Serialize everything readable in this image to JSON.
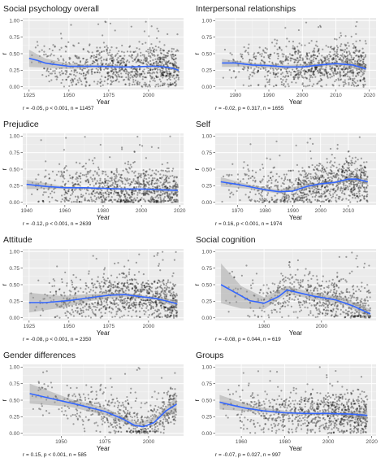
{
  "chart_data": [
    {
      "type": "scatter",
      "title": "Social psychology overall",
      "xlabel": "Year",
      "ylabel": "r",
      "xlim": [
        1921,
        2022
      ],
      "ylim": [
        -0.04,
        1.04
      ],
      "x_ticks": [
        1925,
        1950,
        1975,
        2000
      ],
      "y_ticks": [
        "0.00",
        "0.25",
        "0.50",
        "0.75",
        "1.00"
      ],
      "stats": "r = -0.05, p < 0.001, n = 11457",
      "x_range": [
        1925,
        2019
      ],
      "n_points": 11457,
      "smooth_curve": [
        [
          1925,
          0.43
        ],
        [
          1930,
          0.4
        ],
        [
          1935,
          0.36
        ],
        [
          1940,
          0.34
        ],
        [
          1950,
          0.31
        ],
        [
          1960,
          0.31
        ],
        [
          1970,
          0.31
        ],
        [
          1980,
          0.3
        ],
        [
          1990,
          0.3
        ],
        [
          2000,
          0.31
        ],
        [
          2005,
          0.31
        ],
        [
          2010,
          0.3
        ],
        [
          2015,
          0.28
        ],
        [
          2019,
          0.25
        ]
      ],
      "ci_band": [
        [
          1925,
          0.3,
          0.56
        ],
        [
          1935,
          0.29,
          0.43
        ],
        [
          1950,
          0.27,
          0.35
        ],
        [
          1970,
          0.29,
          0.33
        ],
        [
          1990,
          0.29,
          0.31
        ],
        [
          2010,
          0.29,
          0.31
        ],
        [
          2019,
          0.22,
          0.28
        ]
      ]
    },
    {
      "type": "scatter",
      "title": "Interpersonal relationships",
      "xlabel": "Year",
      "ylabel": "r",
      "xlim": [
        1974,
        2022
      ],
      "ylim": [
        -0.04,
        1.04
      ],
      "x_ticks": [
        1980,
        1990,
        2000,
        2010,
        2020
      ],
      "y_ticks": [
        "0.00",
        "0.25",
        "0.50",
        "0.75",
        "1.00"
      ],
      "stats": "r = -0.02, p = 0.317, n = 1655",
      "x_range": [
        1976,
        2019
      ],
      "n_points": 1655,
      "smooth_curve": [
        [
          1976,
          0.36
        ],
        [
          1980,
          0.36
        ],
        [
          1985,
          0.33
        ],
        [
          1990,
          0.32
        ],
        [
          1995,
          0.3
        ],
        [
          2000,
          0.3
        ],
        [
          2005,
          0.33
        ],
        [
          2010,
          0.35
        ],
        [
          2015,
          0.33
        ],
        [
          2019,
          0.27
        ]
      ],
      "ci_band": [
        [
          1976,
          0.3,
          0.42
        ],
        [
          1985,
          0.3,
          0.36
        ],
        [
          1995,
          0.27,
          0.33
        ],
        [
          2005,
          0.31,
          0.35
        ],
        [
          2012,
          0.32,
          0.37
        ],
        [
          2019,
          0.22,
          0.32
        ]
      ]
    },
    {
      "type": "scatter",
      "title": "Prejudice",
      "xlabel": "Year",
      "ylabel": "r",
      "xlim": [
        1938,
        2022
      ],
      "ylim": [
        -0.04,
        1.04
      ],
      "x_ticks": [
        1940,
        1960,
        1980,
        2000,
        2020
      ],
      "y_ticks": [
        "0.00",
        "0.25",
        "0.50",
        "0.75",
        "1.00"
      ],
      "stats": "r = -0.12, p < 0.001, n = 2639",
      "x_range": [
        1940,
        2019
      ],
      "n_points": 2639,
      "smooth_curve": [
        [
          1940,
          0.27
        ],
        [
          1950,
          0.24
        ],
        [
          1960,
          0.22
        ],
        [
          1970,
          0.22
        ],
        [
          1980,
          0.21
        ],
        [
          1990,
          0.2
        ],
        [
          2000,
          0.2
        ],
        [
          2010,
          0.19
        ],
        [
          2019,
          0.18
        ]
      ],
      "ci_band": [
        [
          1940,
          0.2,
          0.34
        ],
        [
          1960,
          0.2,
          0.24
        ],
        [
          1980,
          0.2,
          0.22
        ],
        [
          2000,
          0.19,
          0.21
        ],
        [
          2019,
          0.15,
          0.21
        ]
      ]
    },
    {
      "type": "scatter",
      "title": "Self",
      "xlabel": "Year",
      "ylabel": "r",
      "xlim": [
        1962,
        2020
      ],
      "ylim": [
        -0.04,
        1.04
      ],
      "x_ticks": [
        1970,
        1980,
        1990,
        2000,
        2010
      ],
      "y_ticks": [
        "0.00",
        "0.25",
        "0.50",
        "0.75",
        "1.00"
      ],
      "stats": "r = 0.16, p < 0.001, n = 1974",
      "x_range": [
        1964,
        2017
      ],
      "n_points": 1974,
      "smooth_curve": [
        [
          1964,
          0.31
        ],
        [
          1970,
          0.27
        ],
        [
          1975,
          0.23
        ],
        [
          1980,
          0.19
        ],
        [
          1985,
          0.16
        ],
        [
          1990,
          0.17
        ],
        [
          1995,
          0.24
        ],
        [
          2000,
          0.28
        ],
        [
          2005,
          0.3
        ],
        [
          2010,
          0.35
        ],
        [
          2013,
          0.35
        ],
        [
          2017,
          0.31
        ]
      ],
      "ci_band": [
        [
          1964,
          0.24,
          0.38
        ],
        [
          1975,
          0.2,
          0.26
        ],
        [
          1985,
          0.13,
          0.19
        ],
        [
          1995,
          0.21,
          0.27
        ],
        [
          2005,
          0.28,
          0.32
        ],
        [
          2013,
          0.32,
          0.38
        ],
        [
          2017,
          0.26,
          0.36
        ]
      ]
    },
    {
      "type": "scatter",
      "title": "Attitude",
      "xlabel": "Year",
      "ylabel": "r",
      "xlim": [
        1921,
        2022
      ],
      "ylim": [
        -0.04,
        1.04
      ],
      "x_ticks": [
        1925,
        1950,
        1975,
        2000
      ],
      "y_ticks": [
        "0.00",
        "0.25",
        "0.50",
        "0.75",
        "1.00"
      ],
      "stats": "r = -0.08, p < 0.001, n = 2350",
      "x_range": [
        1925,
        2018
      ],
      "n_points": 2350,
      "smooth_curve": [
        [
          1925,
          0.23
        ],
        [
          1935,
          0.23
        ],
        [
          1950,
          0.26
        ],
        [
          1965,
          0.31
        ],
        [
          1975,
          0.34
        ],
        [
          1985,
          0.35
        ],
        [
          1995,
          0.32
        ],
        [
          2005,
          0.29
        ],
        [
          2012,
          0.25
        ],
        [
          2018,
          0.21
        ]
      ],
      "ci_band": [
        [
          1925,
          0.08,
          0.38
        ],
        [
          1945,
          0.15,
          0.33
        ],
        [
          1965,
          0.26,
          0.36
        ],
        [
          1985,
          0.32,
          0.38
        ],
        [
          2005,
          0.27,
          0.31
        ],
        [
          2018,
          0.15,
          0.27
        ]
      ]
    },
    {
      "type": "scatter",
      "title": "Social cognition",
      "xlabel": "Year",
      "ylabel": "r",
      "xlim": [
        1963,
        2019
      ],
      "ylim": [
        -0.04,
        1.04
      ],
      "x_ticks": [
        1980,
        2000
      ],
      "y_ticks": [
        "0.00",
        "0.25",
        "0.50",
        "0.75",
        "1.00"
      ],
      "stats": "r = -0.08, p = 0.044, n = 619",
      "x_range": [
        1965,
        2017
      ],
      "n_points": 619,
      "smooth_curve": [
        [
          1965,
          0.5
        ],
        [
          1970,
          0.38
        ],
        [
          1975,
          0.26
        ],
        [
          1980,
          0.22
        ],
        [
          1985,
          0.32
        ],
        [
          1988,
          0.42
        ],
        [
          1992,
          0.38
        ],
        [
          1997,
          0.33
        ],
        [
          2005,
          0.27
        ],
        [
          2011,
          0.18
        ],
        [
          2017,
          0.06
        ]
      ],
      "ci_band": [
        [
          1965,
          0.22,
          0.82
        ],
        [
          1972,
          0.14,
          0.48
        ],
        [
          1980,
          0.13,
          0.31
        ],
        [
          1988,
          0.36,
          0.48
        ],
        [
          1997,
          0.28,
          0.38
        ],
        [
          2008,
          0.2,
          0.3
        ],
        [
          2017,
          0.0,
          0.13
        ]
      ]
    },
    {
      "type": "scatter",
      "title": "Gender differences",
      "xlabel": "Year",
      "ylabel": "r",
      "xlim": [
        1928,
        2020
      ],
      "ylim": [
        -0.04,
        1.04
      ],
      "x_ticks": [
        1950,
        1975,
        2000
      ],
      "y_ticks": [
        "0.00",
        "0.25",
        "0.50",
        "0.75",
        "1.00"
      ],
      "stats": "r = 0.15, p < 0.001, n = 585",
      "x_range": [
        1932,
        2016
      ],
      "n_points": 585,
      "smooth_curve": [
        [
          1932,
          0.6
        ],
        [
          1945,
          0.52
        ],
        [
          1960,
          0.43
        ],
        [
          1975,
          0.33
        ],
        [
          1985,
          0.22
        ],
        [
          1992,
          0.12
        ],
        [
          1997,
          0.1
        ],
        [
          2003,
          0.16
        ],
        [
          2010,
          0.34
        ],
        [
          2016,
          0.44
        ]
      ],
      "ci_band": [
        [
          1932,
          0.45,
          0.75
        ],
        [
          1955,
          0.4,
          0.52
        ],
        [
          1975,
          0.27,
          0.39
        ],
        [
          1993,
          0.09,
          0.15
        ],
        [
          2005,
          0.2,
          0.26
        ],
        [
          2016,
          0.32,
          0.56
        ]
      ]
    },
    {
      "type": "scatter",
      "title": "Groups",
      "xlabel": "Year",
      "ylabel": "r",
      "xlim": [
        1948,
        2022
      ],
      "ylim": [
        -0.04,
        1.04
      ],
      "x_ticks": [
        1960,
        1980,
        2000,
        2020
      ],
      "y_ticks": [
        "0.00",
        "0.25",
        "0.50",
        "0.75",
        "1.00"
      ],
      "stats": "r = -0.07, p = 0.027, n = 997",
      "x_range": [
        1950,
        2018
      ],
      "n_points": 997,
      "smooth_curve": [
        [
          1950,
          0.47
        ],
        [
          1955,
          0.43
        ],
        [
          1962,
          0.38
        ],
        [
          1970,
          0.34
        ],
        [
          1980,
          0.31
        ],
        [
          1990,
          0.3
        ],
        [
          2000,
          0.3
        ],
        [
          2010,
          0.29
        ],
        [
          2018,
          0.27
        ]
      ],
      "ci_band": [
        [
          1950,
          0.36,
          0.58
        ],
        [
          1965,
          0.33,
          0.41
        ],
        [
          1985,
          0.28,
          0.32
        ],
        [
          2005,
          0.27,
          0.31
        ],
        [
          2018,
          0.2,
          0.34
        ]
      ]
    }
  ],
  "style": {
    "panel_bg": "#ebebeb",
    "grid_major": "#ffffff",
    "point_color": "#000000",
    "smooth_color": "#3366ff",
    "band_color": "#999999"
  }
}
